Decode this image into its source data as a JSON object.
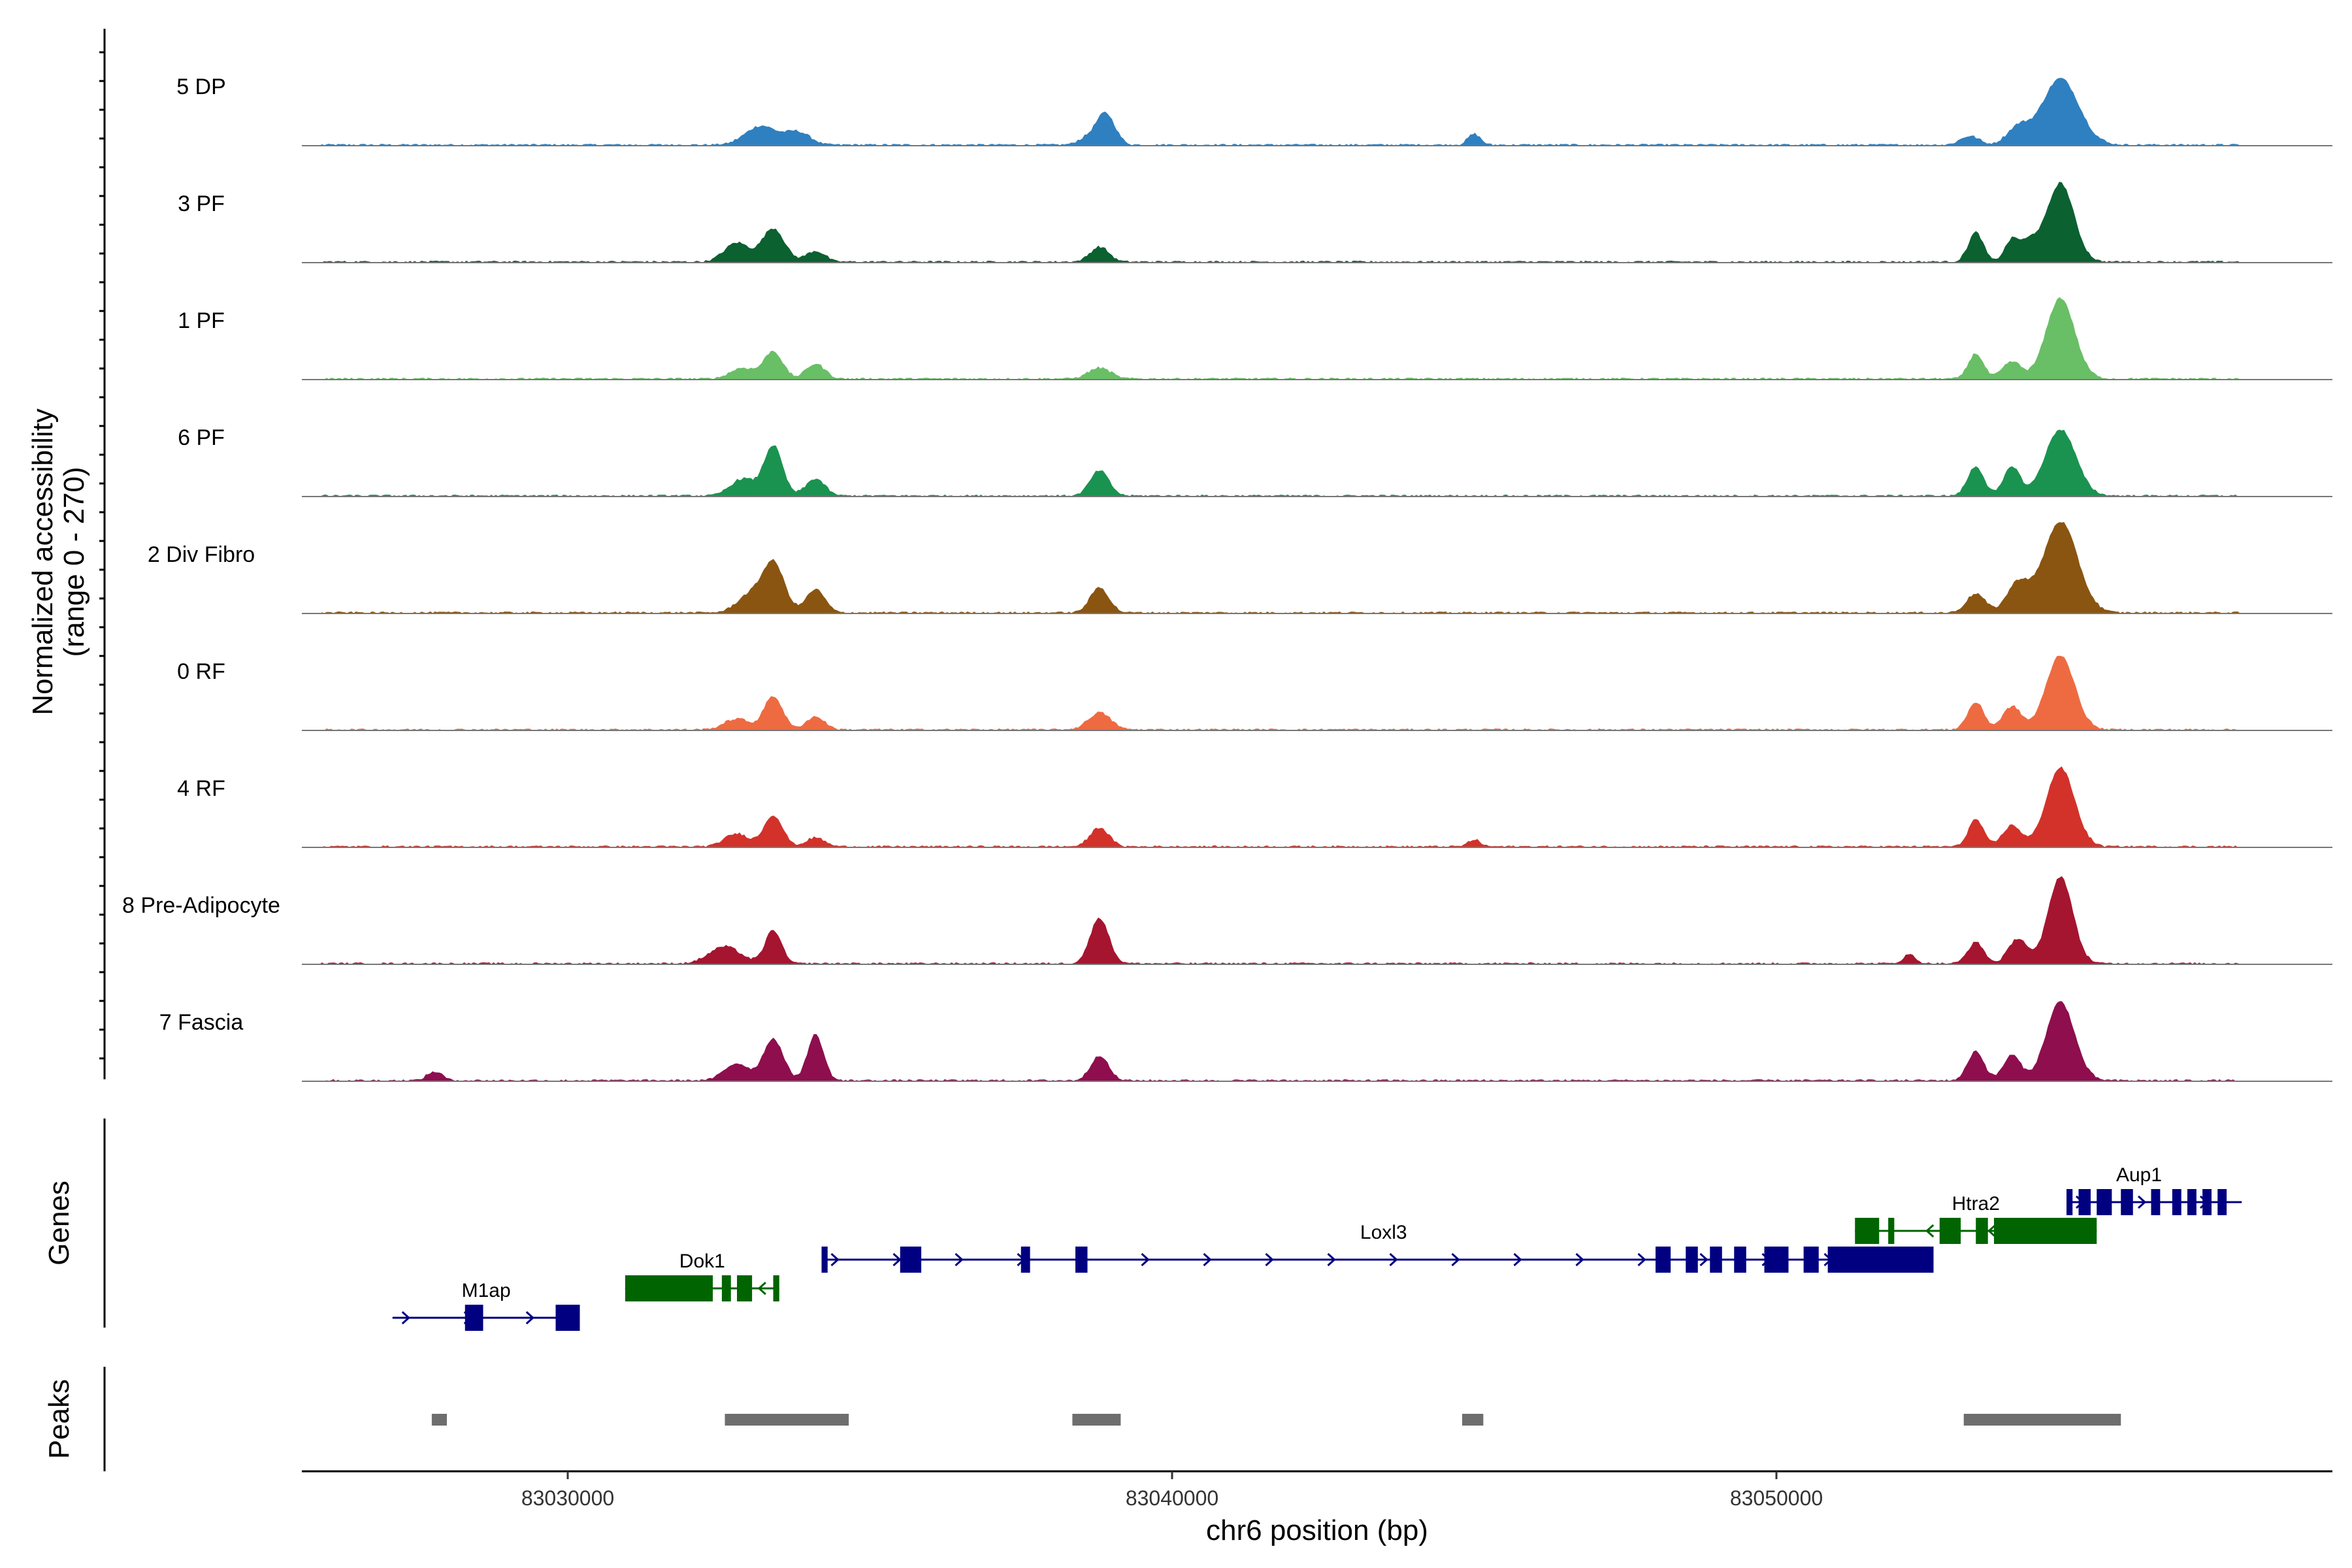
{
  "chart_data": {
    "type": "area",
    "title": "",
    "ylabel_line1": "Normalized accessibility",
    "ylabel_line2": "(range 0 - 270)",
    "xlabel": "chr6 position (bp)",
    "xlim": [
      83025600,
      83059200
    ],
    "ylim": [
      0,
      270
    ],
    "x_ticks": [
      83030000,
      83040000,
      83050000
    ],
    "x_tick_labels": [
      "83030000",
      "83040000",
      "83050000"
    ],
    "tracks": [
      {
        "name": "5 DP",
        "color": "#2F80C0",
        "peaks": [
          [
            83033200,
            45,
            250
          ],
          [
            83033800,
            30,
            200
          ],
          [
            83038900,
            75,
            150
          ],
          [
            83038600,
            15,
            150
          ],
          [
            83045000,
            25,
            100
          ],
          [
            83054700,
            160,
            300
          ],
          [
            83054000,
            40,
            180
          ],
          [
            83053200,
            20,
            150
          ]
        ]
      },
      {
        "name": "3 PF",
        "color": "#0B6130",
        "peaks": [
          [
            83033400,
            80,
            180
          ],
          [
            83032800,
            45,
            200
          ],
          [
            83034100,
            25,
            150
          ],
          [
            83038800,
            35,
            150
          ],
          [
            83054700,
            190,
            220
          ],
          [
            83053300,
            70,
            120
          ],
          [
            83053900,
            50,
            120
          ],
          [
            83054200,
            45,
            150
          ]
        ]
      },
      {
        "name": "1 PF",
        "color": "#69BF65",
        "peaks": [
          [
            83033400,
            65,
            150
          ],
          [
            83032900,
            25,
            200
          ],
          [
            83034100,
            35,
            150
          ],
          [
            83038800,
            25,
            180
          ],
          [
            83054700,
            195,
            230
          ],
          [
            83053300,
            60,
            120
          ],
          [
            83053900,
            40,
            150
          ]
        ]
      },
      {
        "name": "6 PF",
        "color": "#1A9350",
        "peaks": [
          [
            83033400,
            120,
            150
          ],
          [
            83032900,
            40,
            200
          ],
          [
            83034100,
            40,
            150
          ],
          [
            83038800,
            60,
            150
          ],
          [
            83054700,
            160,
            250
          ],
          [
            83053300,
            70,
            130
          ],
          [
            83053900,
            70,
            130
          ]
        ]
      },
      {
        "name": "2 Div Fibro",
        "color": "#8A5511",
        "peaks": [
          [
            83033400,
            120,
            180
          ],
          [
            83033000,
            40,
            200
          ],
          [
            83034100,
            55,
            150
          ],
          [
            83038800,
            60,
            150
          ],
          [
            83054700,
            220,
            280
          ],
          [
            83053300,
            45,
            150
          ],
          [
            83054000,
            70,
            180
          ]
        ]
      },
      {
        "name": "0 RF",
        "color": "#EE6B42",
        "peaks": [
          [
            83033400,
            80,
            150
          ],
          [
            83032800,
            25,
            200
          ],
          [
            83034100,
            30,
            150
          ],
          [
            83038800,
            40,
            180
          ],
          [
            83054700,
            180,
            230
          ],
          [
            83053300,
            65,
            130
          ],
          [
            83053900,
            55,
            150
          ]
        ]
      },
      {
        "name": "4 RF",
        "color": "#D2322A",
        "peaks": [
          [
            83033400,
            75,
            150
          ],
          [
            83032800,
            30,
            200
          ],
          [
            83034100,
            20,
            150
          ],
          [
            83038800,
            45,
            150
          ],
          [
            83045000,
            15,
            100
          ],
          [
            83054700,
            190,
            230
          ],
          [
            83053300,
            65,
            120
          ],
          [
            83053900,
            50,
            150
          ]
        ]
      },
      {
        "name": "8 Pre-Adipocyte",
        "color": "#A51530",
        "peaks": [
          [
            83033400,
            80,
            130
          ],
          [
            83032600,
            40,
            250
          ],
          [
            83038800,
            110,
            150
          ],
          [
            83054700,
            210,
            200
          ],
          [
            83053300,
            50,
            130
          ],
          [
            83054000,
            60,
            150
          ],
          [
            83052200,
            20,
            100
          ]
        ]
      },
      {
        "name": "7 Fascia",
        "color": "#8E0E4E",
        "peaks": [
          [
            83033400,
            100,
            160
          ],
          [
            83032800,
            40,
            200
          ],
          [
            83034100,
            110,
            130
          ],
          [
            83038800,
            60,
            140
          ],
          [
            83054700,
            190,
            230
          ],
          [
            83053300,
            70,
            130
          ],
          [
            83053900,
            60,
            140
          ],
          [
            83027800,
            20,
            120
          ]
        ]
      }
    ],
    "genes_track_label": "Genes",
    "peaks_track_label": "Peaks",
    "genes": [
      {
        "name": "M1ap",
        "strand": "+",
        "color": "#000080",
        "start": 83027100,
        "end": 83030200,
        "exons": [
          [
            83028300,
            83028600
          ],
          [
            83029800,
            83030200
          ]
        ]
      },
      {
        "name": "Dok1",
        "strand": "-",
        "color": "#006400",
        "start": 83030950,
        "end": 83033500,
        "exons": [
          [
            83030950,
            83032400
          ],
          [
            83032550,
            83032700
          ],
          [
            83032800,
            83033050
          ],
          [
            83033400,
            83033500
          ]
        ]
      },
      {
        "name": "Loxl3",
        "strand": "+",
        "color": "#000080",
        "start": 83034200,
        "end": 83052600,
        "exons": [
          [
            83034200,
            83034300
          ],
          [
            83035500,
            83035850
          ],
          [
            83037500,
            83037650
          ],
          [
            83038400,
            83038600
          ],
          [
            83048000,
            83048250
          ],
          [
            83048500,
            83048700
          ],
          [
            83048900,
            83049100
          ],
          [
            83049300,
            83049500
          ],
          [
            83049800,
            83050200
          ],
          [
            83050450,
            83050700
          ],
          [
            83050850,
            83052600
          ]
        ]
      },
      {
        "name": "Htra2",
        "strand": "-",
        "color": "#006400",
        "start": 83051300,
        "end": 83055300,
        "exons": [
          [
            83051300,
            83051700
          ],
          [
            83051850,
            83051950
          ],
          [
            83052700,
            83053050
          ],
          [
            83053300,
            83053500
          ],
          [
            83053600,
            83055300
          ]
        ]
      },
      {
        "name": "Aup1",
        "strand": "+",
        "color": "#000080",
        "start": 83054800,
        "end": 83057700,
        "exons": [
          [
            83054800,
            83054900
          ],
          [
            83055000,
            83055200
          ],
          [
            83055300,
            83055550
          ],
          [
            83055700,
            83055900
          ],
          [
            83056200,
            83056350
          ],
          [
            83056550,
            83056700
          ],
          [
            83056800,
            83056950
          ],
          [
            83057050,
            83057200
          ],
          [
            83057300,
            83057450
          ]
        ]
      }
    ],
    "peak_regions": [
      [
        83027750,
        83028000
      ],
      [
        83032600,
        83034650
      ],
      [
        83038350,
        83039150
      ],
      [
        83044800,
        83045150
      ],
      [
        83053100,
        83055700
      ]
    ]
  }
}
